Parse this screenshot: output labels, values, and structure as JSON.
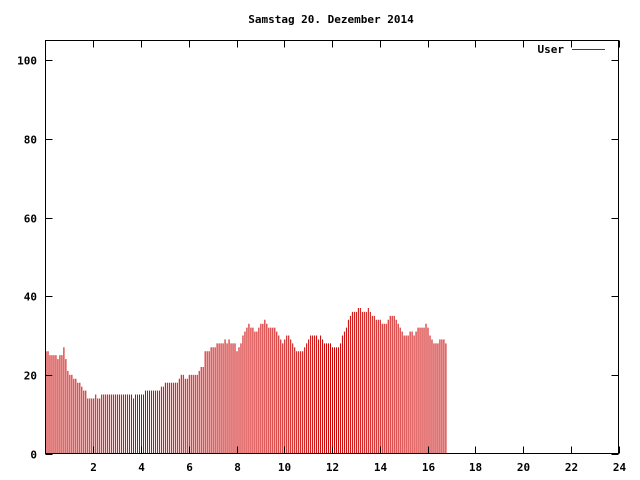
{
  "chart_data": {
    "type": "bar",
    "title": "Samstag 20. Dezember 2014",
    "xlabel": "",
    "ylabel": "",
    "xlim": [
      0,
      24
    ],
    "ylim": [
      0,
      105
    ],
    "x_ticks": [
      2,
      4,
      6,
      8,
      10,
      12,
      14,
      16,
      18,
      20,
      22,
      24
    ],
    "y_ticks": [
      0,
      20,
      40,
      60,
      80,
      100
    ],
    "grid": false,
    "legend": "top-right",
    "colors": {
      "series": "#cc0000",
      "axes": "#000000",
      "background": "#ffffff"
    },
    "series": [
      {
        "name": "User",
        "interval_minutes": 5,
        "values": [
          26,
          26,
          25,
          25,
          25,
          25,
          24,
          25,
          25,
          27,
          24,
          21,
          20,
          20,
          19,
          19,
          18,
          18,
          17,
          16,
          16,
          14,
          14,
          14,
          14,
          15,
          14,
          14,
          15,
          15,
          15,
          15,
          15,
          15,
          15,
          15,
          15,
          15,
          15,
          15,
          15,
          15,
          15,
          15,
          14,
          15,
          15,
          15,
          15,
          15,
          16,
          16,
          16,
          16,
          16,
          16,
          16,
          16,
          17,
          17,
          18,
          18,
          18,
          18,
          18,
          18,
          18,
          19,
          20,
          20,
          19,
          19,
          20,
          20,
          20,
          20,
          20,
          21,
          22,
          22,
          26,
          26,
          26,
          27,
          27,
          27,
          28,
          28,
          28,
          28,
          29,
          28,
          29,
          28,
          28,
          28,
          26,
          27,
          28,
          30,
          31,
          32,
          33,
          32,
          32,
          31,
          31,
          32,
          33,
          33,
          34,
          33,
          32,
          32,
          32,
          32,
          31,
          30,
          29,
          28,
          29,
          30,
          30,
          29,
          28,
          27,
          26,
          26,
          26,
          26,
          27,
          28,
          29,
          30,
          30,
          30,
          30,
          29,
          30,
          29,
          28,
          28,
          28,
          28,
          27,
          27,
          27,
          27,
          28,
          30,
          31,
          32,
          34,
          35,
          36,
          36,
          36,
          37,
          37,
          36,
          36,
          36,
          37,
          36,
          35,
          35,
          34,
          34,
          34,
          33,
          33,
          33,
          34,
          35,
          35,
          35,
          34,
          33,
          32,
          31,
          30,
          30,
          30,
          31,
          31,
          30,
          31,
          32,
          32,
          32,
          32,
          33,
          32,
          30,
          29,
          28,
          28,
          28,
          29,
          29,
          29,
          28
        ]
      }
    ]
  }
}
